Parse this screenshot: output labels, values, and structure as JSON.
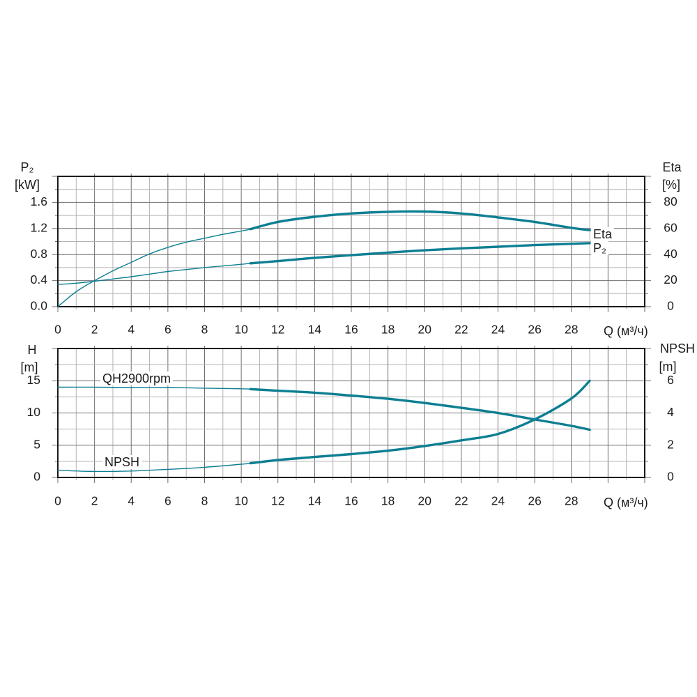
{
  "figure": {
    "background": "#ffffff"
  },
  "colors": {
    "curve": "#0d7f92",
    "grid_major": "#6f6f6f",
    "grid_minor": "#b3b3b3",
    "axis": "#1a1a1a",
    "text": "#1c1c1c"
  },
  "chart_data": [
    {
      "name": "power-efficiency-chart",
      "type": "line",
      "x_axis": {
        "label": "Q (м³/ч)",
        "range": [
          0,
          32
        ],
        "minor_step": 1,
        "major_step": 2,
        "tick_values": [
          0,
          2,
          4,
          6,
          8,
          10,
          12,
          14,
          16,
          18,
          20,
          22,
          24,
          26,
          28
        ],
        "tick_labels": [
          "0",
          "2",
          "4",
          "6",
          "8",
          "10",
          "12",
          "14",
          "16",
          "18",
          "20",
          "22",
          "24",
          "26",
          "28"
        ]
      },
      "left_axis": {
        "title": "P₂",
        "unit": "[kW]",
        "range": [
          0,
          2.0
        ],
        "minor_step": 0.2,
        "major_step": 0.4,
        "tick_values": [
          1.6,
          1.2,
          0.8,
          0.4,
          0.0
        ],
        "tick_labels": [
          "1.6",
          "1.2",
          "0.8",
          "0.4",
          "0.0"
        ]
      },
      "right_axis": {
        "title": "Eta",
        "unit": "[%]",
        "range": [
          0,
          100
        ],
        "minor_step": 10,
        "major_step": 20,
        "tick_values": [
          80,
          60,
          40,
          20,
          0
        ],
        "tick_labels": [
          "80",
          "60",
          "40",
          "20",
          "0"
        ]
      },
      "series": [
        {
          "name": "Eta",
          "label": "Eta",
          "axis": "right",
          "bold_from": 10.5,
          "points": [
            [
              0,
              0
            ],
            [
              0.5,
              6
            ],
            [
              1,
              11.5
            ],
            [
              1.5,
              16
            ],
            [
              2,
              20
            ],
            [
              3,
              27.5
            ],
            [
              4,
              34
            ],
            [
              5,
              40.5
            ],
            [
              6,
              45.5
            ],
            [
              7,
              49.5
            ],
            [
              8,
              52.5
            ],
            [
              9,
              55.5
            ],
            [
              10,
              58
            ],
            [
              10.5,
              59.5
            ],
            [
              12,
              65
            ],
            [
              14,
              69
            ],
            [
              16,
              71.5
            ],
            [
              18,
              72.8
            ],
            [
              20,
              73
            ],
            [
              22,
              71.5
            ],
            [
              24,
              68.5
            ],
            [
              26,
              65
            ],
            [
              28,
              60.5
            ],
            [
              29,
              58.7
            ]
          ]
        },
        {
          "name": "P2",
          "label": "P₂",
          "axis": "left",
          "bold_from": 10.5,
          "points": [
            [
              0,
              0.34
            ],
            [
              1,
              0.36
            ],
            [
              2,
              0.39
            ],
            [
              3,
              0.425
            ],
            [
              4,
              0.46
            ],
            [
              5,
              0.5
            ],
            [
              6,
              0.54
            ],
            [
              7,
              0.57
            ],
            [
              8,
              0.6
            ],
            [
              9,
              0.625
            ],
            [
              10,
              0.65
            ],
            [
              10.5,
              0.665
            ],
            [
              12,
              0.7
            ],
            [
              14,
              0.75
            ],
            [
              16,
              0.79
            ],
            [
              18,
              0.83
            ],
            [
              20,
              0.865
            ],
            [
              22,
              0.895
            ],
            [
              24,
              0.92
            ],
            [
              26,
              0.945
            ],
            [
              28,
              0.965
            ],
            [
              29,
              0.975
            ]
          ]
        }
      ]
    },
    {
      "name": "head-npsh-chart",
      "type": "line",
      "x_axis": {
        "label": "Q (м³/ч)",
        "range": [
          0,
          32
        ],
        "minor_step": 1,
        "major_step": 2,
        "tick_values": [
          0,
          2,
          4,
          6,
          8,
          10,
          12,
          14,
          16,
          18,
          20,
          22,
          24,
          26,
          28
        ],
        "tick_labels": [
          "0",
          "2",
          "4",
          "6",
          "8",
          "10",
          "12",
          "14",
          "16",
          "18",
          "20",
          "22",
          "24",
          "26",
          "28"
        ]
      },
      "left_axis": {
        "title": "H",
        "unit": "[m]",
        "range": [
          0,
          20
        ],
        "minor_step": 2.5,
        "major_step": 5,
        "tick_values": [
          15,
          10,
          5,
          0
        ],
        "tick_labels": [
          "15",
          "10",
          "5",
          "0"
        ]
      },
      "right_axis": {
        "title": "NPSH",
        "unit": "[m]",
        "range": [
          0,
          8
        ],
        "minor_step": 1,
        "major_step": 2,
        "tick_values": [
          6,
          4,
          2,
          0
        ],
        "tick_labels": [
          "6",
          "4",
          "2",
          "0"
        ]
      },
      "series": [
        {
          "name": "QH2900rpm",
          "label": "QH2900rpm",
          "axis": "left",
          "bold_from": 10.5,
          "points": [
            [
              0,
              14.0
            ],
            [
              2,
              14.0
            ],
            [
              4,
              13.95
            ],
            [
              6,
              13.95
            ],
            [
              8,
              13.85
            ],
            [
              10,
              13.75
            ],
            [
              10.5,
              13.7
            ],
            [
              12,
              13.45
            ],
            [
              14,
              13.15
            ],
            [
              16,
              12.7
            ],
            [
              18,
              12.2
            ],
            [
              20,
              11.55
            ],
            [
              22,
              10.8
            ],
            [
              24,
              10.0
            ],
            [
              26,
              9.0
            ],
            [
              28,
              8.0
            ],
            [
              29,
              7.4
            ]
          ]
        },
        {
          "name": "NPSH",
          "label": "NPSH",
          "axis": "right",
          "bold_from": 10.5,
          "points": [
            [
              0,
              0.45
            ],
            [
              2,
              0.37
            ],
            [
              4,
              0.4
            ],
            [
              6,
              0.5
            ],
            [
              8,
              0.63
            ],
            [
              10,
              0.82
            ],
            [
              10.5,
              0.88
            ],
            [
              12,
              1.08
            ],
            [
              14,
              1.27
            ],
            [
              16,
              1.45
            ],
            [
              18,
              1.66
            ],
            [
              20,
              1.95
            ],
            [
              22,
              2.3
            ],
            [
              24,
              2.7
            ],
            [
              26,
              3.6
            ],
            [
              28,
              4.9
            ],
            [
              29,
              6.0
            ]
          ]
        }
      ]
    }
  ]
}
